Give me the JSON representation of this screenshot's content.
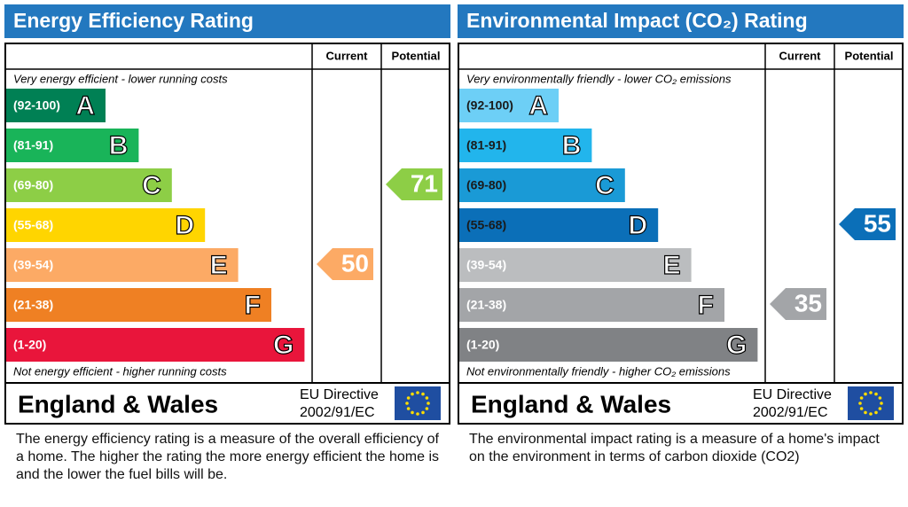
{
  "panels": [
    {
      "title": "Energy Efficiency Rating",
      "headers": [
        "Current",
        "Potential"
      ],
      "top_note": "Very energy efficient - lower running costs",
      "bottom_note": "Not energy efficient - higher running costs",
      "bands": [
        {
          "range": "(92-100)",
          "letter": "A",
          "color": "#008054",
          "label_color": "#ffffff"
        },
        {
          "range": "(81-91)",
          "letter": "B",
          "color": "#19b459",
          "label_color": "#ffffff"
        },
        {
          "range": "(69-80)",
          "letter": "C",
          "color": "#8dce46",
          "label_color": "#ffffff"
        },
        {
          "range": "(55-68)",
          "letter": "D",
          "color": "#ffd500",
          "label_color": "#ffffff"
        },
        {
          "range": "(39-54)",
          "letter": "E",
          "color": "#fcaa65",
          "label_color": "#ffffff"
        },
        {
          "range": "(21-38)",
          "letter": "F",
          "color": "#ef8023",
          "label_color": "#ffffff"
        },
        {
          "range": "(1-20)",
          "letter": "G",
          "color": "#e9153b",
          "label_color": "#ffffff"
        }
      ],
      "current": 50,
      "potential": 71,
      "region": "England & Wales",
      "directive": [
        "EU Directive",
        "2002/91/EC"
      ],
      "description": "The energy efficiency rating is a measure of the overall efficiency of a home.  The higher the rating the more energy efficient the home is and the lower the fuel bills will be."
    },
    {
      "title": "Environmental Impact (CO₂) Rating",
      "headers": [
        "Current",
        "Potential"
      ],
      "top_note": "Very environmentally friendly - lower CO₂ emissions",
      "bottom_note": "Not environmentally friendly - higher CO₂ emissions",
      "bands": [
        {
          "range": "(92-100)",
          "letter": "A",
          "color": "#6dcff6",
          "label_color": "#1a1a1a"
        },
        {
          "range": "(81-91)",
          "letter": "B",
          "color": "#22b5ec",
          "label_color": "#1a1a1a"
        },
        {
          "range": "(69-80)",
          "letter": "C",
          "color": "#1a9ad6",
          "label_color": "#1a1a1a"
        },
        {
          "range": "(55-68)",
          "letter": "D",
          "color": "#0b6fb8",
          "label_color": "#1a1a1a"
        },
        {
          "range": "(39-54)",
          "letter": "E",
          "color": "#bbbdbf",
          "label_color": "#ffffff"
        },
        {
          "range": "(21-38)",
          "letter": "F",
          "color": "#a3a5a8",
          "label_color": "#ffffff"
        },
        {
          "range": "(1-20)",
          "letter": "G",
          "color": "#808285",
          "label_color": "#ffffff"
        }
      ],
      "current": 35,
      "potential": 55,
      "region": "England & Wales",
      "directive": [
        "EU Directive",
        "2002/91/EC"
      ],
      "description": "The environmental impact rating is a measure of a home's impact on the environment in terms of carbon dioxide (CO2)"
    }
  ]
}
